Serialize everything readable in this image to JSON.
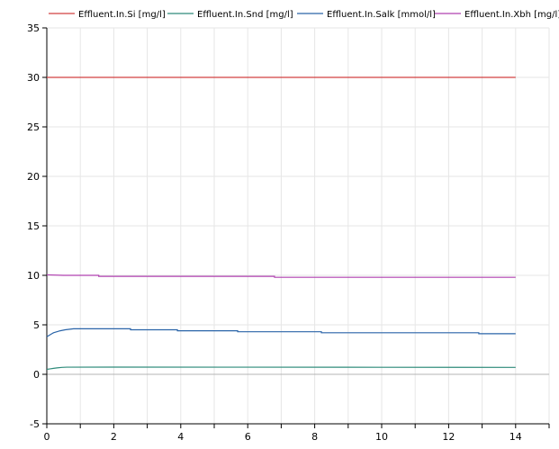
{
  "chart_data": {
    "type": "line",
    "xlim": [
      0,
      15
    ],
    "ylim": [
      -5,
      35
    ],
    "x_ticks": [
      0,
      2,
      4,
      6,
      8,
      10,
      12,
      14
    ],
    "y_ticks": [
      -5,
      0,
      5,
      10,
      15,
      20,
      25,
      30,
      35
    ],
    "grid": true,
    "legend_position": "top",
    "series": [
      {
        "name": "Effluent.In.Si [mg/l]",
        "color": "#d24040",
        "points": [
          [
            0,
            30
          ],
          [
            14,
            30
          ]
        ]
      },
      {
        "name": "Effluent.In.Snd [mg/l]",
        "color": "#2e8b7a",
        "points": [
          [
            0,
            0.5
          ],
          [
            0.1,
            0.55
          ],
          [
            0.2,
            0.6
          ],
          [
            0.3,
            0.65
          ],
          [
            0.45,
            0.7
          ],
          [
            0.6,
            0.72
          ],
          [
            2,
            0.73
          ],
          [
            6,
            0.72
          ],
          [
            10,
            0.71
          ],
          [
            14,
            0.7
          ]
        ]
      },
      {
        "name": "Effluent.In.Salk [mmol/l]",
        "color": "#2a64a8",
        "points": [
          [
            0,
            3.8
          ],
          [
            0.05,
            3.9
          ],
          [
            0.1,
            4.0
          ],
          [
            0.15,
            4.1
          ],
          [
            0.2,
            4.2
          ],
          [
            0.3,
            4.3
          ],
          [
            0.4,
            4.4
          ],
          [
            0.55,
            4.5
          ],
          [
            0.8,
            4.6
          ],
          [
            2.5,
            4.6
          ],
          [
            2.5,
            4.5
          ],
          [
            3.9,
            4.5
          ],
          [
            3.9,
            4.4
          ],
          [
            5.7,
            4.4
          ],
          [
            5.7,
            4.3
          ],
          [
            8.2,
            4.3
          ],
          [
            8.2,
            4.2
          ],
          [
            12.9,
            4.2
          ],
          [
            12.9,
            4.1
          ],
          [
            14,
            4.1
          ]
        ]
      },
      {
        "name": "Effluent.In.Xbh [mg/l]",
        "color": "#b040b0",
        "points": [
          [
            0,
            10.05
          ],
          [
            0.5,
            10.0
          ],
          [
            1.55,
            10.0
          ],
          [
            1.55,
            9.9
          ],
          [
            6.8,
            9.9
          ],
          [
            6.8,
            9.8
          ],
          [
            14,
            9.8
          ]
        ]
      }
    ]
  }
}
